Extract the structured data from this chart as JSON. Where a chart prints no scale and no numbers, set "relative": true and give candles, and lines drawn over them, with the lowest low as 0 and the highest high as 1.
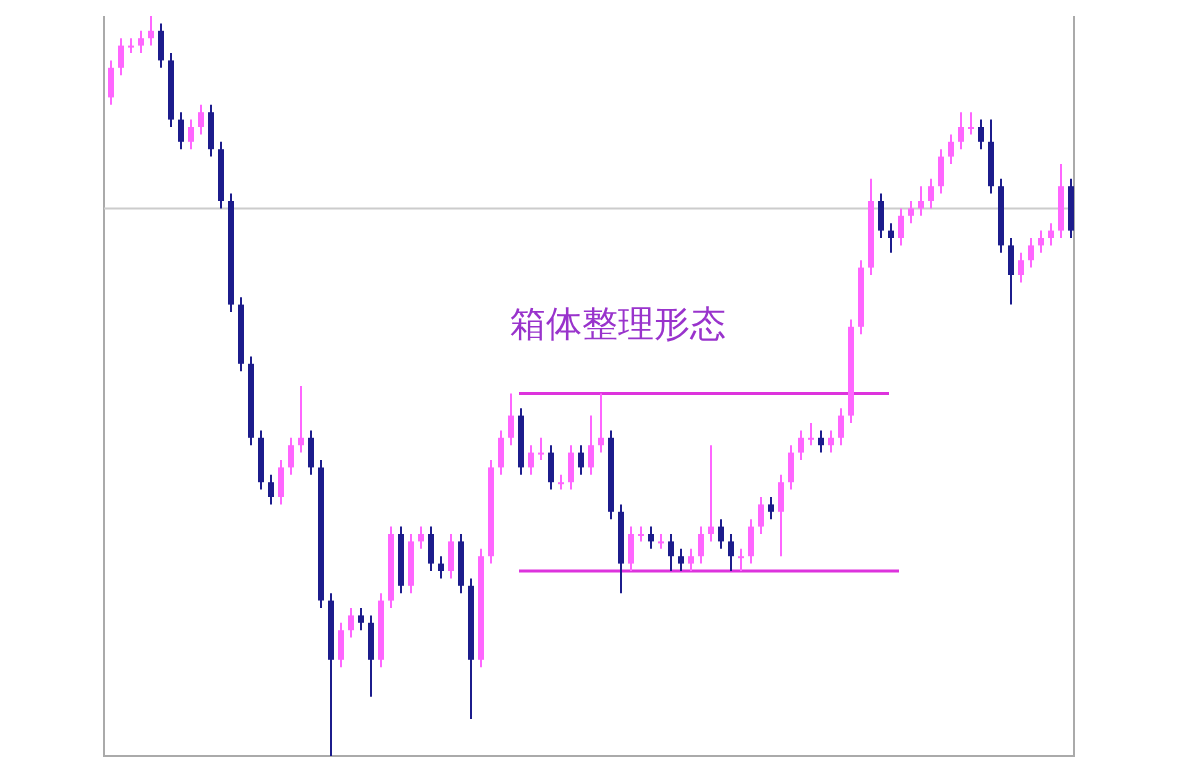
{
  "chart_data": {
    "type": "candlestick",
    "title": "箱体整理形态",
    "relative": true,
    "tick_labels": false,
    "categories": [
      null,
      null,
      null,
      null,
      null,
      null,
      null,
      null,
      null,
      null,
      null,
      null,
      null,
      null,
      null,
      null,
      null,
      null,
      null,
      null,
      null,
      null,
      null,
      null,
      null,
      null,
      null,
      null,
      null,
      null,
      null,
      null,
      null,
      null,
      null,
      null,
      null,
      null,
      null,
      null,
      null,
      null,
      null,
      null,
      null,
      null,
      null,
      null,
      null,
      null,
      null,
      null,
      null,
      null,
      null,
      null,
      null,
      null,
      null,
      null,
      null,
      null,
      null,
      null,
      null,
      null,
      null,
      null,
      null,
      null,
      null,
      null,
      null,
      null,
      null,
      null,
      null,
      null,
      null,
      null,
      null,
      null,
      null,
      null,
      null,
      null,
      null,
      null,
      null,
      null,
      null,
      null,
      null,
      null,
      null,
      null,
      null
    ],
    "ohlc": [
      [
        0.89,
        0.94,
        0.88,
        0.93
      ],
      [
        0.93,
        0.97,
        0.92,
        0.96
      ],
      [
        0.96,
        0.97,
        0.95,
        0.96
      ],
      [
        0.96,
        0.98,
        0.95,
        0.97
      ],
      [
        0.97,
        1.0,
        0.96,
        0.98
      ],
      [
        0.98,
        0.99,
        0.93,
        0.94
      ],
      [
        0.94,
        0.95,
        0.85,
        0.86
      ],
      [
        0.86,
        0.87,
        0.82,
        0.83
      ],
      [
        0.83,
        0.86,
        0.82,
        0.85
      ],
      [
        0.85,
        0.88,
        0.84,
        0.87
      ],
      [
        0.87,
        0.88,
        0.81,
        0.82
      ],
      [
        0.82,
        0.83,
        0.74,
        0.75
      ],
      [
        0.75,
        0.76,
        0.6,
        0.61
      ],
      [
        0.61,
        0.62,
        0.52,
        0.53
      ],
      [
        0.53,
        0.54,
        0.42,
        0.43
      ],
      [
        0.43,
        0.44,
        0.36,
        0.37
      ],
      [
        0.37,
        0.38,
        0.34,
        0.35
      ],
      [
        0.35,
        0.4,
        0.34,
        0.39
      ],
      [
        0.39,
        0.43,
        0.38,
        0.42
      ],
      [
        0.42,
        0.5,
        0.41,
        0.43
      ],
      [
        0.43,
        0.44,
        0.38,
        0.39
      ],
      [
        0.39,
        0.4,
        0.2,
        0.21
      ],
      [
        0.21,
        0.22,
        0.0,
        0.13
      ],
      [
        0.13,
        0.18,
        0.12,
        0.17
      ],
      [
        0.17,
        0.2,
        0.16,
        0.19
      ],
      [
        0.19,
        0.2,
        0.17,
        0.18
      ],
      [
        0.18,
        0.19,
        0.08,
        0.13
      ],
      [
        0.13,
        0.22,
        0.12,
        0.21
      ],
      [
        0.21,
        0.31,
        0.2,
        0.3
      ],
      [
        0.3,
        0.31,
        0.22,
        0.23
      ],
      [
        0.23,
        0.3,
        0.22,
        0.29
      ],
      [
        0.29,
        0.31,
        0.28,
        0.3
      ],
      [
        0.3,
        0.31,
        0.25,
        0.26
      ],
      [
        0.26,
        0.27,
        0.24,
        0.25
      ],
      [
        0.25,
        0.3,
        0.24,
        0.29
      ],
      [
        0.29,
        0.3,
        0.22,
        0.23
      ],
      [
        0.23,
        0.24,
        0.05,
        0.13
      ],
      [
        0.13,
        0.28,
        0.12,
        0.27
      ],
      [
        0.27,
        0.4,
        0.26,
        0.39
      ],
      [
        0.39,
        0.44,
        0.38,
        0.43
      ],
      [
        0.43,
        0.49,
        0.42,
        0.46
      ],
      [
        0.46,
        0.47,
        0.38,
        0.39
      ],
      [
        0.39,
        0.42,
        0.38,
        0.41
      ],
      [
        0.41,
        0.43,
        0.4,
        0.41
      ],
      [
        0.41,
        0.42,
        0.36,
        0.37
      ],
      [
        0.37,
        0.38,
        0.36,
        0.37
      ],
      [
        0.37,
        0.42,
        0.36,
        0.41
      ],
      [
        0.41,
        0.42,
        0.38,
        0.39
      ],
      [
        0.39,
        0.46,
        0.38,
        0.42
      ],
      [
        0.42,
        0.49,
        0.41,
        0.43
      ],
      [
        0.43,
        0.44,
        0.32,
        0.33
      ],
      [
        0.33,
        0.34,
        0.22,
        0.26
      ],
      [
        0.26,
        0.31,
        0.25,
        0.3
      ],
      [
        0.3,
        0.31,
        0.29,
        0.3
      ],
      [
        0.3,
        0.31,
        0.28,
        0.29
      ],
      [
        0.29,
        0.3,
        0.28,
        0.29
      ],
      [
        0.29,
        0.3,
        0.25,
        0.27
      ],
      [
        0.27,
        0.28,
        0.25,
        0.26
      ],
      [
        0.26,
        0.28,
        0.25,
        0.27
      ],
      [
        0.27,
        0.31,
        0.26,
        0.3
      ],
      [
        0.3,
        0.42,
        0.29,
        0.31
      ],
      [
        0.31,
        0.32,
        0.28,
        0.29
      ],
      [
        0.29,
        0.3,
        0.25,
        0.27
      ],
      [
        0.27,
        0.28,
        0.25,
        0.27
      ],
      [
        0.27,
        0.32,
        0.26,
        0.31
      ],
      [
        0.31,
        0.35,
        0.3,
        0.34
      ],
      [
        0.34,
        0.35,
        0.32,
        0.33
      ],
      [
        0.33,
        0.38,
        0.27,
        0.37
      ],
      [
        0.37,
        0.42,
        0.36,
        0.41
      ],
      [
        0.41,
        0.44,
        0.4,
        0.43
      ],
      [
        0.43,
        0.45,
        0.42,
        0.43
      ],
      [
        0.43,
        0.44,
        0.41,
        0.42
      ],
      [
        0.42,
        0.44,
        0.41,
        0.43
      ],
      [
        0.43,
        0.47,
        0.42,
        0.46
      ],
      [
        0.46,
        0.59,
        0.45,
        0.58
      ],
      [
        0.58,
        0.67,
        0.57,
        0.66
      ],
      [
        0.66,
        0.78,
        0.65,
        0.75
      ],
      [
        0.75,
        0.76,
        0.7,
        0.71
      ],
      [
        0.71,
        0.72,
        0.68,
        0.7
      ],
      [
        0.7,
        0.74,
        0.69,
        0.73
      ],
      [
        0.73,
        0.75,
        0.72,
        0.74
      ],
      [
        0.74,
        0.77,
        0.73,
        0.75
      ],
      [
        0.75,
        0.78,
        0.74,
        0.77
      ],
      [
        0.77,
        0.82,
        0.76,
        0.81
      ],
      [
        0.81,
        0.84,
        0.8,
        0.83
      ],
      [
        0.83,
        0.87,
        0.82,
        0.85
      ],
      [
        0.85,
        0.87,
        0.84,
        0.85
      ],
      [
        0.85,
        0.86,
        0.82,
        0.83
      ],
      [
        0.83,
        0.86,
        0.76,
        0.77
      ],
      [
        0.77,
        0.78,
        0.68,
        0.69
      ],
      [
        0.69,
        0.7,
        0.61,
        0.65
      ],
      [
        0.65,
        0.68,
        0.64,
        0.67
      ],
      [
        0.67,
        0.7,
        0.66,
        0.69
      ],
      [
        0.69,
        0.71,
        0.68,
        0.7
      ],
      [
        0.7,
        0.72,
        0.69,
        0.71
      ],
      [
        0.71,
        0.8,
        0.7,
        0.77
      ],
      [
        0.77,
        0.78,
        0.7,
        0.71
      ]
    ],
    "colors": [
      "#ff66ff",
      "#ff66ff",
      "#ff66ff",
      "#ff66ff",
      "#ff66ff",
      "#1c1c8c",
      "#1c1c8c",
      "#1c1c8c",
      "#ff66ff",
      "#ff66ff",
      "#1c1c8c",
      "#1c1c8c",
      "#1c1c8c",
      "#1c1c8c",
      "#1c1c8c",
      "#1c1c8c",
      "#1c1c8c",
      "#ff66ff",
      "#ff66ff",
      "#ff66ff",
      "#1c1c8c",
      "#1c1c8c",
      "#1c1c8c",
      "#ff66ff",
      "#ff66ff",
      "#1c1c8c",
      "#1c1c8c",
      "#ff66ff",
      "#ff66ff",
      "#1c1c8c",
      "#ff66ff",
      "#ff66ff",
      "#1c1c8c",
      "#1c1c8c",
      "#ff66ff",
      "#1c1c8c",
      "#1c1c8c",
      "#ff66ff",
      "#ff66ff",
      "#ff66ff",
      "#ff66ff",
      "#1c1c8c",
      "#ff66ff",
      "#ff66ff",
      "#1c1c8c",
      "#ff66ff",
      "#ff66ff",
      "#1c1c8c",
      "#ff66ff",
      "#ff66ff",
      "#1c1c8c",
      "#1c1c8c",
      "#ff66ff",
      "#ff66ff",
      "#1c1c8c",
      "#ff66ff",
      "#1c1c8c",
      "#1c1c8c",
      "#ff66ff",
      "#ff66ff",
      "#ff66ff",
      "#1c1c8c",
      "#1c1c8c",
      "#ff66ff",
      "#ff66ff",
      "#ff66ff",
      "#1c1c8c",
      "#ff66ff",
      "#ff66ff",
      "#ff66ff",
      "#ff66ff",
      "#1c1c8c",
      "#ff66ff",
      "#ff66ff",
      "#ff66ff",
      "#ff66ff",
      "#ff66ff",
      "#1c1c8c",
      "#1c1c8c",
      "#ff66ff",
      "#ff66ff",
      "#ff66ff",
      "#ff66ff",
      "#ff66ff",
      "#ff66ff",
      "#ff66ff",
      "#ff66ff",
      "#1c1c8c",
      "#1c1c8c",
      "#1c1c8c",
      "#1c1c8c",
      "#ff66ff",
      "#ff66ff",
      "#ff66ff",
      "#ff66ff",
      "#ff66ff",
      "#1c1c8c"
    ],
    "series": [
      {
        "type": "line",
        "color": "#dd33dd",
        "values": [
          null,
          null,
          null,
          null,
          null,
          null,
          null,
          null,
          null,
          null,
          null,
          null,
          null,
          null,
          null,
          null,
          null,
          null,
          null,
          null,
          null,
          null,
          null,
          null,
          null,
          null,
          null,
          null,
          null,
          null,
          null,
          null,
          null,
          null,
          null,
          null,
          null,
          null,
          null,
          null,
          null,
          0.49,
          0.49,
          0.49,
          0.49,
          0.49,
          0.49,
          0.49,
          0.49,
          0.49,
          0.49,
          0.49,
          0.49,
          0.49,
          0.49,
          0.49,
          0.49,
          0.49,
          0.49,
          0.49,
          0.49,
          0.49,
          0.49,
          0.49,
          0.49,
          0.49,
          0.49,
          0.49,
          0.49,
          0.49,
          0.49,
          0.49,
          0.49,
          0.49,
          0.49,
          0.49,
          0.49,
          0.49,
          0.49,
          null,
          null,
          null,
          null,
          null,
          null,
          null,
          null,
          null,
          null,
          null,
          null,
          null,
          null,
          null,
          null,
          null,
          null
        ]
      },
      {
        "type": "line",
        "color": "#dd33dd",
        "values": [
          null,
          null,
          null,
          null,
          null,
          null,
          null,
          null,
          null,
          null,
          null,
          null,
          null,
          null,
          null,
          null,
          null,
          null,
          null,
          null,
          null,
          null,
          null,
          null,
          null,
          null,
          null,
          null,
          null,
          null,
          null,
          null,
          null,
          null,
          null,
          null,
          null,
          null,
          null,
          null,
          null,
          0.25,
          0.25,
          0.25,
          0.25,
          0.25,
          0.25,
          0.25,
          0.25,
          0.25,
          0.25,
          0.25,
          0.25,
          0.25,
          0.25,
          0.25,
          0.25,
          0.25,
          0.25,
          0.25,
          0.25,
          0.25,
          0.25,
          0.25,
          0.25,
          0.25,
          0.25,
          0.25,
          0.25,
          0.25,
          0.25,
          0.25,
          0.25,
          0.25,
          0.25,
          0.25,
          0.25,
          0.25,
          0.25,
          0.25,
          null,
          null,
          null,
          null,
          null,
          null,
          null,
          null,
          null,
          null,
          null,
          null,
          null,
          null,
          null,
          null,
          null
        ]
      }
    ],
    "ref_lines": [
      {
        "axis": "y",
        "value": 0.74,
        "color": "#cccccc"
      }
    ]
  }
}
